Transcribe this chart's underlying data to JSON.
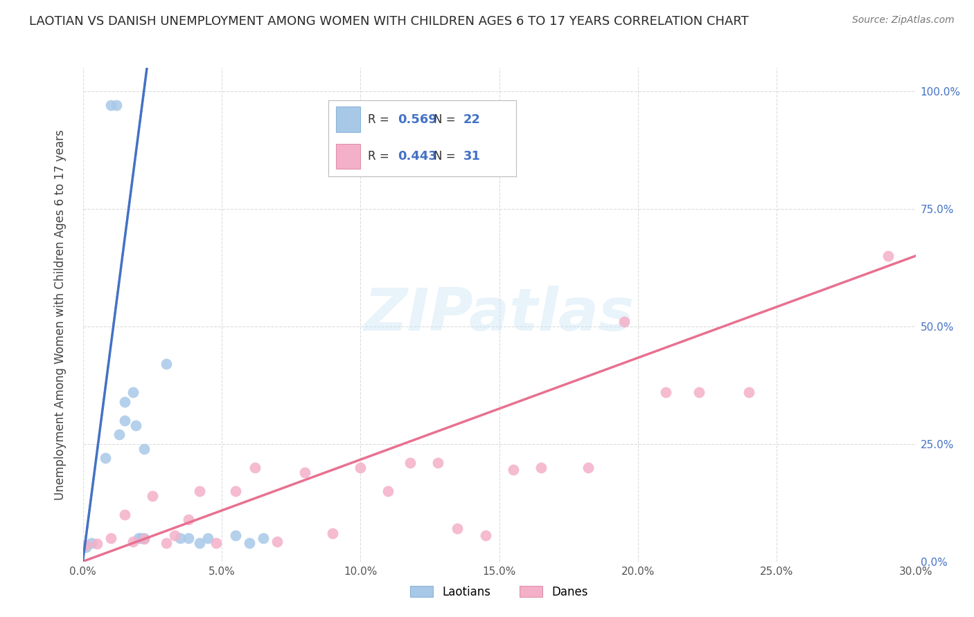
{
  "title": "LAOTIAN VS DANISH UNEMPLOYMENT AMONG WOMEN WITH CHILDREN AGES 6 TO 17 YEARS CORRELATION CHART",
  "source": "Source: ZipAtlas.com",
  "ylabel": "Unemployment Among Women with Children Ages 6 to 17 years",
  "xlim": [
    0.0,
    0.3
  ],
  "ylim": [
    0.0,
    1.05
  ],
  "xticks": [
    0.0,
    0.05,
    0.1,
    0.15,
    0.2,
    0.25,
    0.3
  ],
  "xtick_labels": [
    "0.0%",
    "5.0%",
    "10.0%",
    "15.0%",
    "20.0%",
    "25.0%",
    "30.0%"
  ],
  "ytick_labels_right": [
    "0.0%",
    "25.0%",
    "50.0%",
    "75.0%",
    "100.0%"
  ],
  "yticks": [
    0.0,
    0.25,
    0.5,
    0.75,
    1.0
  ],
  "laotian_color": "#a8c8e8",
  "laotian_line_color": "#4472c4",
  "danish_color": "#f4b0c8",
  "danish_line_color": "#e87090",
  "legend_text_color": "#333333",
  "legend_value_color": "#4472c4",
  "laotian_R": "0.569",
  "laotian_N": "22",
  "danish_R": "0.443",
  "danish_N": "31",
  "watermark_text": "ZIPatlas",
  "laotian_x": [
    0.001,
    0.003,
    0.008,
    0.01,
    0.012,
    0.013,
    0.015,
    0.015,
    0.018,
    0.019,
    0.02,
    0.021,
    0.022,
    0.022,
    0.03,
    0.035,
    0.038,
    0.042,
    0.045,
    0.055,
    0.06,
    0.065
  ],
  "laotian_y": [
    0.03,
    0.04,
    0.22,
    0.97,
    0.97,
    0.27,
    0.3,
    0.34,
    0.36,
    0.29,
    0.05,
    0.05,
    0.24,
    0.05,
    0.42,
    0.05,
    0.05,
    0.04,
    0.05,
    0.055,
    0.04,
    0.05
  ],
  "danish_x": [
    0.001,
    0.005,
    0.01,
    0.015,
    0.018,
    0.022,
    0.025,
    0.03,
    0.033,
    0.038,
    0.042,
    0.048,
    0.055,
    0.062,
    0.07,
    0.08,
    0.09,
    0.1,
    0.11,
    0.118,
    0.128,
    0.135,
    0.145,
    0.155,
    0.165,
    0.182,
    0.195,
    0.21,
    0.222,
    0.24,
    0.29
  ],
  "danish_y": [
    0.035,
    0.038,
    0.05,
    0.1,
    0.042,
    0.048,
    0.14,
    0.04,
    0.055,
    0.09,
    0.15,
    0.04,
    0.15,
    0.2,
    0.042,
    0.19,
    0.06,
    0.2,
    0.15,
    0.21,
    0.21,
    0.07,
    0.055,
    0.195,
    0.2,
    0.2,
    0.51,
    0.36,
    0.36,
    0.36,
    0.65
  ],
  "lao_line_x0": 0.0,
  "lao_line_y0": 0.0,
  "lao_line_x1": 0.022,
  "lao_line_y1": 1.0,
  "dan_line_x0": 0.0,
  "dan_line_y0": 0.0,
  "dan_line_x1": 0.3,
  "dan_line_y1": 0.65
}
